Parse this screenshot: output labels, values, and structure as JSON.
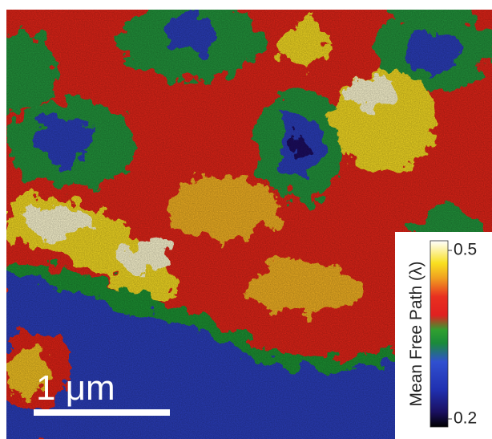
{
  "scale_bar": {
    "label": "1 μm"
  },
  "colorbar": {
    "label": "Mean Free Path (λ)",
    "ticks": [
      0.5,
      0.2
    ]
  }
}
